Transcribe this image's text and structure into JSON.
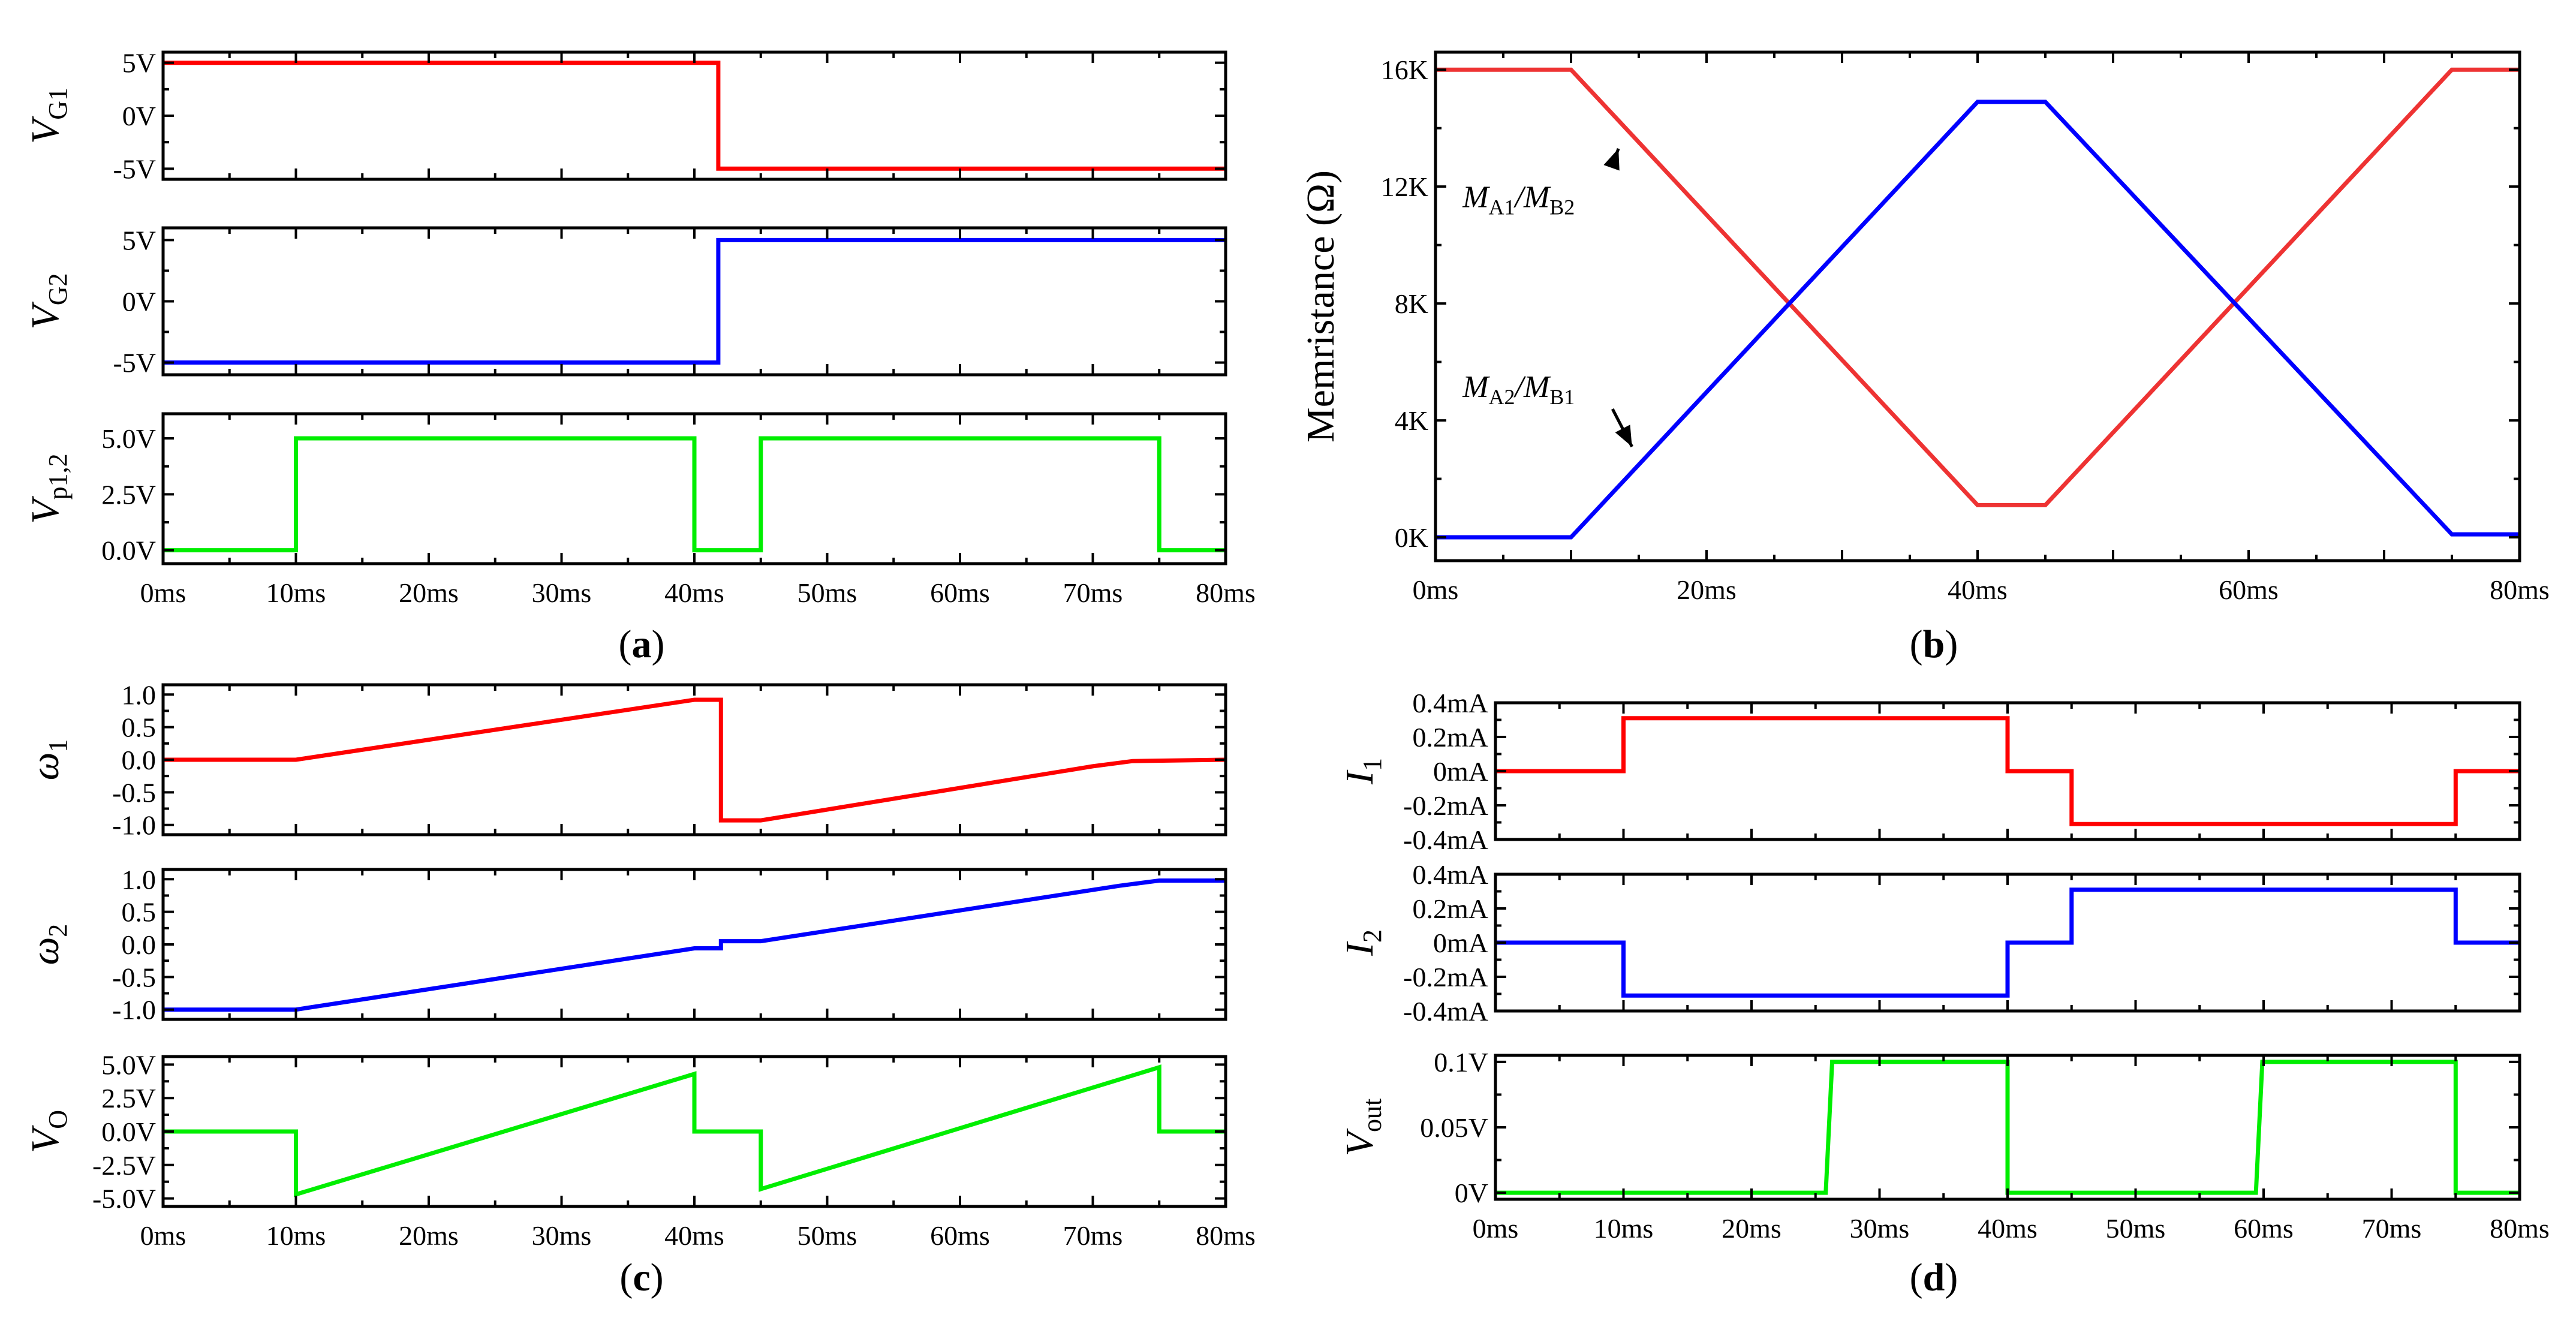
{
  "figure_labels": {
    "a": {
      "open": "(",
      "letter": "a",
      "close": ")"
    },
    "b": {
      "open": "(",
      "letter": "b",
      "close": ")"
    },
    "c": {
      "open": "(",
      "letter": "c",
      "close": ")"
    },
    "d": {
      "open": "(",
      "letter": "d",
      "close": ")"
    }
  },
  "chart_data": [
    {
      "id": "a1",
      "panel": "a",
      "type": "line",
      "ylabel": {
        "main": "V",
        "sub": "G1"
      },
      "xlim": [
        0,
        80
      ],
      "ylim": [
        -6,
        6
      ],
      "yticks": [
        {
          "v": 5,
          "label": "5V"
        },
        {
          "v": 0,
          "label": "0V"
        },
        {
          "v": -5,
          "label": "-5V"
        }
      ],
      "xticks": [
        0,
        10,
        20,
        30,
        40,
        50,
        60,
        70,
        80
      ],
      "series": [
        {
          "name": "V_G1",
          "color": "#ff0000",
          "x": [
            0,
            41.8,
            41.8,
            80
          ],
          "y": [
            5,
            5,
            -5,
            -5
          ]
        }
      ]
    },
    {
      "id": "a2",
      "panel": "a",
      "type": "line",
      "ylabel": {
        "main": "V",
        "sub": "G2"
      },
      "xlim": [
        0,
        80
      ],
      "ylim": [
        -6,
        6
      ],
      "yticks": [
        {
          "v": 5,
          "label": "5V"
        },
        {
          "v": 0,
          "label": "0V"
        },
        {
          "v": -5,
          "label": "-5V"
        }
      ],
      "xticks": [
        0,
        10,
        20,
        30,
        40,
        50,
        60,
        70,
        80
      ],
      "series": [
        {
          "name": "V_G2",
          "color": "#0000ff",
          "x": [
            0,
            41.8,
            41.8,
            80
          ],
          "y": [
            -5,
            -5,
            5,
            5
          ]
        }
      ]
    },
    {
      "id": "a3",
      "panel": "a",
      "type": "line",
      "ylabel": {
        "main": "V",
        "sub": "p1,2"
      },
      "xlim": [
        0,
        80
      ],
      "ylim": [
        -0.6,
        6.1
      ],
      "yticks": [
        {
          "v": 5,
          "label": "5.0V"
        },
        {
          "v": 2.5,
          "label": "2.5V"
        },
        {
          "v": 0,
          "label": "0.0V"
        }
      ],
      "xticks": [
        0,
        10,
        20,
        30,
        40,
        50,
        60,
        70,
        80
      ],
      "xticklabels": [
        "0ms",
        "10ms",
        "20ms",
        "30ms",
        "40ms",
        "50ms",
        "60ms",
        "70ms",
        "80ms"
      ],
      "series": [
        {
          "name": "V_p1,2",
          "color": "#00ee00",
          "x": [
            0,
            10,
            10,
            40,
            40,
            45,
            45,
            75,
            75,
            80
          ],
          "y": [
            0,
            0,
            5,
            5,
            0,
            0,
            5,
            5,
            0,
            0
          ]
        }
      ]
    },
    {
      "id": "b1",
      "panel": "b",
      "type": "line",
      "ylabel_text": "Memristance (Ω)",
      "xlim": [
        0,
        80
      ],
      "ylim": [
        -0.8,
        16.6
      ],
      "yticks": [
        {
          "v": 16,
          "label": "16K"
        },
        {
          "v": 12,
          "label": "12K"
        },
        {
          "v": 8,
          "label": "8K"
        },
        {
          "v": 4,
          "label": "4K"
        },
        {
          "v": 0,
          "label": "0K"
        }
      ],
      "xticks": [
        0,
        10,
        20,
        30,
        40,
        50,
        60,
        70,
        80
      ],
      "xticklabels": [
        "0ms",
        "",
        "20ms",
        "",
        "40ms",
        "",
        "60ms",
        "",
        "80ms"
      ],
      "annotations": [
        {
          "main": "M",
          "sub1": "A1",
          "sep": "/",
          "main2": "M",
          "sub2": "B2",
          "x": 2,
          "y": 11.3,
          "arrow_to": [
            13.5,
            13.3
          ]
        },
        {
          "main": "M",
          "sub1": "A2",
          "sep": "/",
          "main2": "M",
          "sub2": "B1",
          "x": 2,
          "y": 4.8,
          "arrow_to": [
            14.5,
            3.1
          ]
        }
      ],
      "series": [
        {
          "name": "M_A1/M_B2",
          "color": "#ee3333",
          "x": [
            0,
            10,
            40,
            45,
            75,
            80
          ],
          "y": [
            16,
            16,
            1.1,
            1.1,
            16,
            16
          ]
        },
        {
          "name": "M_A2/M_B1",
          "color": "#0000ff",
          "x": [
            0,
            10,
            40,
            45,
            75,
            80
          ],
          "y": [
            0,
            0,
            14.9,
            14.9,
            0.1,
            0.1
          ]
        }
      ]
    },
    {
      "id": "c1",
      "panel": "c",
      "type": "line",
      "ylabel": {
        "main": "ω",
        "sub": "1"
      },
      "xlim": [
        0,
        80
      ],
      "ylim": [
        -1.15,
        1.15
      ],
      "yticks": [
        {
          "v": 1,
          "label": "1.0"
        },
        {
          "v": 0.5,
          "label": "0.5"
        },
        {
          "v": 0,
          "label": "0.0"
        },
        {
          "v": -0.5,
          "label": "-0.5"
        },
        {
          "v": -1,
          "label": "-1.0"
        }
      ],
      "xticks": [
        0,
        10,
        20,
        30,
        40,
        50,
        60,
        70,
        80
      ],
      "series": [
        {
          "name": "ω1",
          "color": "#ff0000",
          "x": [
            0,
            10,
            40,
            42,
            42,
            45,
            70,
            73,
            80
          ],
          "y": [
            0,
            0,
            0.92,
            0.92,
            -0.93,
            -0.93,
            -0.1,
            -0.02,
            0
          ]
        }
      ]
    },
    {
      "id": "c2",
      "panel": "c",
      "type": "line",
      "ylabel": {
        "main": "ω",
        "sub": "2"
      },
      "xlim": [
        0,
        80
      ],
      "ylim": [
        -1.15,
        1.15
      ],
      "yticks": [
        {
          "v": 1,
          "label": "1.0"
        },
        {
          "v": 0.5,
          "label": "0.5"
        },
        {
          "v": 0,
          "label": "0.0"
        },
        {
          "v": -0.5,
          "label": "-0.5"
        },
        {
          "v": -1,
          "label": "-1.0"
        }
      ],
      "xticks": [
        0,
        10,
        20,
        30,
        40,
        50,
        60,
        70,
        80
      ],
      "series": [
        {
          "name": "ω2",
          "color": "#0000ff",
          "x": [
            0,
            10,
            40,
            42,
            42,
            45,
            72,
            75,
            80
          ],
          "y": [
            -1,
            -1,
            -0.06,
            -0.06,
            0.05,
            0.05,
            0.9,
            0.98,
            0.98
          ]
        }
      ]
    },
    {
      "id": "c3",
      "panel": "c",
      "type": "line",
      "ylabel": {
        "main": "V",
        "sub": "O"
      },
      "xlim": [
        0,
        80
      ],
      "ylim": [
        -5.6,
        5.6
      ],
      "yticks": [
        {
          "v": 5,
          "label": "5.0V"
        },
        {
          "v": 2.5,
          "label": "2.5V"
        },
        {
          "v": 0,
          "label": "0.0V"
        },
        {
          "v": -2.5,
          "label": "-2.5V"
        },
        {
          "v": -5,
          "label": "-5.0V"
        }
      ],
      "xticks": [
        0,
        10,
        20,
        30,
        40,
        50,
        60,
        70,
        80
      ],
      "xticklabels": [
        "0ms",
        "10ms",
        "20ms",
        "30ms",
        "40ms",
        "50ms",
        "60ms",
        "70ms",
        "80ms"
      ],
      "series": [
        {
          "name": "V_O",
          "color": "#00ee00",
          "x": [
            0,
            10,
            10,
            40,
            40,
            45,
            45,
            75,
            75,
            80
          ],
          "y": [
            0,
            0,
            -4.7,
            4.3,
            0,
            0,
            -4.3,
            4.8,
            0,
            0
          ]
        }
      ]
    },
    {
      "id": "d1",
      "panel": "d",
      "type": "line",
      "ylabel": {
        "main": "I",
        "sub": "1"
      },
      "xlim": [
        0,
        80
      ],
      "ylim": [
        -0.4,
        0.4
      ],
      "yticks": [
        {
          "v": 0.4,
          "label": "0.4mA"
        },
        {
          "v": 0.2,
          "label": "0.2mA"
        },
        {
          "v": 0,
          "label": "0mA"
        },
        {
          "v": -0.2,
          "label": "-0.2mA"
        },
        {
          "v": -0.4,
          "label": "-0.4mA"
        }
      ],
      "xticks": [
        0,
        10,
        20,
        30,
        40,
        50,
        60,
        70,
        80
      ],
      "series": [
        {
          "name": "I1",
          "color": "#ff0000",
          "x": [
            0,
            10,
            10,
            40,
            40,
            45,
            45,
            75,
            75,
            80
          ],
          "y": [
            0,
            0,
            0.31,
            0.31,
            0,
            0,
            -0.31,
            -0.31,
            0,
            0
          ]
        }
      ]
    },
    {
      "id": "d2",
      "panel": "d",
      "type": "line",
      "ylabel": {
        "main": "I",
        "sub": "2"
      },
      "xlim": [
        0,
        80
      ],
      "ylim": [
        -0.4,
        0.4
      ],
      "yticks": [
        {
          "v": 0.4,
          "label": "0.4mA"
        },
        {
          "v": 0.2,
          "label": "0.2mA"
        },
        {
          "v": 0,
          "label": "0mA"
        },
        {
          "v": -0.2,
          "label": "-0.2mA"
        },
        {
          "v": -0.4,
          "label": "-0.4mA"
        }
      ],
      "xticks": [
        0,
        10,
        20,
        30,
        40,
        50,
        60,
        70,
        80
      ],
      "series": [
        {
          "name": "I2",
          "color": "#0000ff",
          "x": [
            0,
            10,
            10,
            40,
            40,
            45,
            45,
            75,
            75,
            80
          ],
          "y": [
            0,
            0,
            -0.31,
            -0.31,
            0,
            0,
            0.31,
            0.31,
            0,
            0
          ]
        }
      ]
    },
    {
      "id": "d3",
      "panel": "d",
      "type": "line",
      "ylabel": {
        "main": "V",
        "sub": "out"
      },
      "xlim": [
        0,
        80
      ],
      "ylim": [
        -0.005,
        0.105
      ],
      "yticks": [
        {
          "v": 0.1,
          "label": "0.1V"
        },
        {
          "v": 0.05,
          "label": "0.05V"
        },
        {
          "v": 0,
          "label": "0V"
        }
      ],
      "xticks": [
        0,
        10,
        20,
        30,
        40,
        50,
        60,
        70,
        80
      ],
      "xticklabels": [
        "0ms",
        "10ms",
        "20ms",
        "30ms",
        "40ms",
        "50ms",
        "60ms",
        "70ms",
        "80ms"
      ],
      "series": [
        {
          "name": "V_out",
          "color": "#00ee00",
          "x": [
            0,
            25.8,
            26.3,
            40,
            40,
            59.4,
            59.9,
            75,
            75,
            80
          ],
          "y": [
            0,
            0,
            0.1,
            0.1,
            0,
            0,
            0.1,
            0.1,
            0,
            0
          ]
        }
      ]
    }
  ]
}
